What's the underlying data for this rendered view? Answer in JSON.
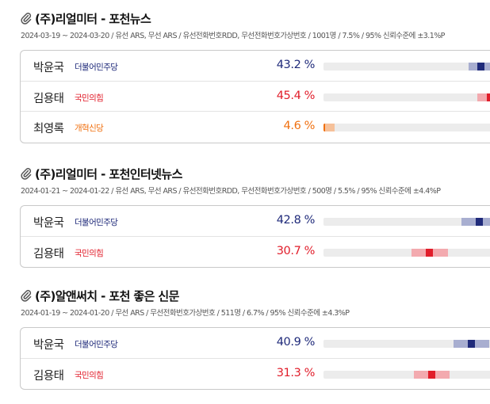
{
  "polls": [
    {
      "title": "(주)리얼미터 - 포천뉴스",
      "meta": "2024-03-19 ~ 2024-03-20 / 유선 ARS, 무선 ARS / 유선전화번호RDD, 무선전화번호가상번호 / 1001명 / 7.5% / 95% 신뢰수준에 ±3.1%P",
      "margin_of_error": 3.1,
      "candidates": [
        {
          "name": "박윤국",
          "party": "더불어민주당",
          "party_key": "dem",
          "pct_label": "43.2 %",
          "value": 43.2
        },
        {
          "name": "김용태",
          "party": "국민의힘",
          "party_key": "ppp",
          "pct_label": "45.4 %",
          "value": 45.4
        },
        {
          "name": "최영록",
          "party": "개혁신당",
          "party_key": "rf",
          "pct_label": "4.6 %",
          "value": 4.6
        }
      ]
    },
    {
      "title": "(주)리얼미터 - 포천인터넷뉴스",
      "meta": "2024-01-21 ~ 2024-01-22 / 유선 ARS, 무선 ARS / 유선전화번호RDD, 무선전화번호가상번호 / 500명 / 5.5% / 95% 신뢰수준에 ±4.4%P",
      "margin_of_error": 4.4,
      "candidates": [
        {
          "name": "박윤국",
          "party": "더불어민주당",
          "party_key": "dem",
          "pct_label": "42.8 %",
          "value": 42.8
        },
        {
          "name": "김용태",
          "party": "국민의힘",
          "party_key": "ppp",
          "pct_label": "30.7 %",
          "value": 30.7
        }
      ]
    },
    {
      "title": "(주)알앤써치 - 포천 좋은 신문",
      "meta": "2024-01-19 ~ 2024-01-20 / 무선 ARS / 무선전화번호가상번호 / 511명 / 6.7% / 95% 신뢰수준에 ±4.3%P",
      "margin_of_error": 4.3,
      "candidates": [
        {
          "name": "박윤국",
          "party": "더불어민주당",
          "party_key": "dem",
          "pct_label": "40.9 %",
          "value": 40.9
        },
        {
          "name": "김용태",
          "party": "국민의힘",
          "party_key": "ppp",
          "pct_label": "31.3 %",
          "value": 31.3
        }
      ]
    }
  ],
  "colors": {
    "dem": "#1f2a7a",
    "ppp": "#e11d2a",
    "rf": "#f07010"
  },
  "icons": {
    "poll_header": "paperclip-icon"
  }
}
